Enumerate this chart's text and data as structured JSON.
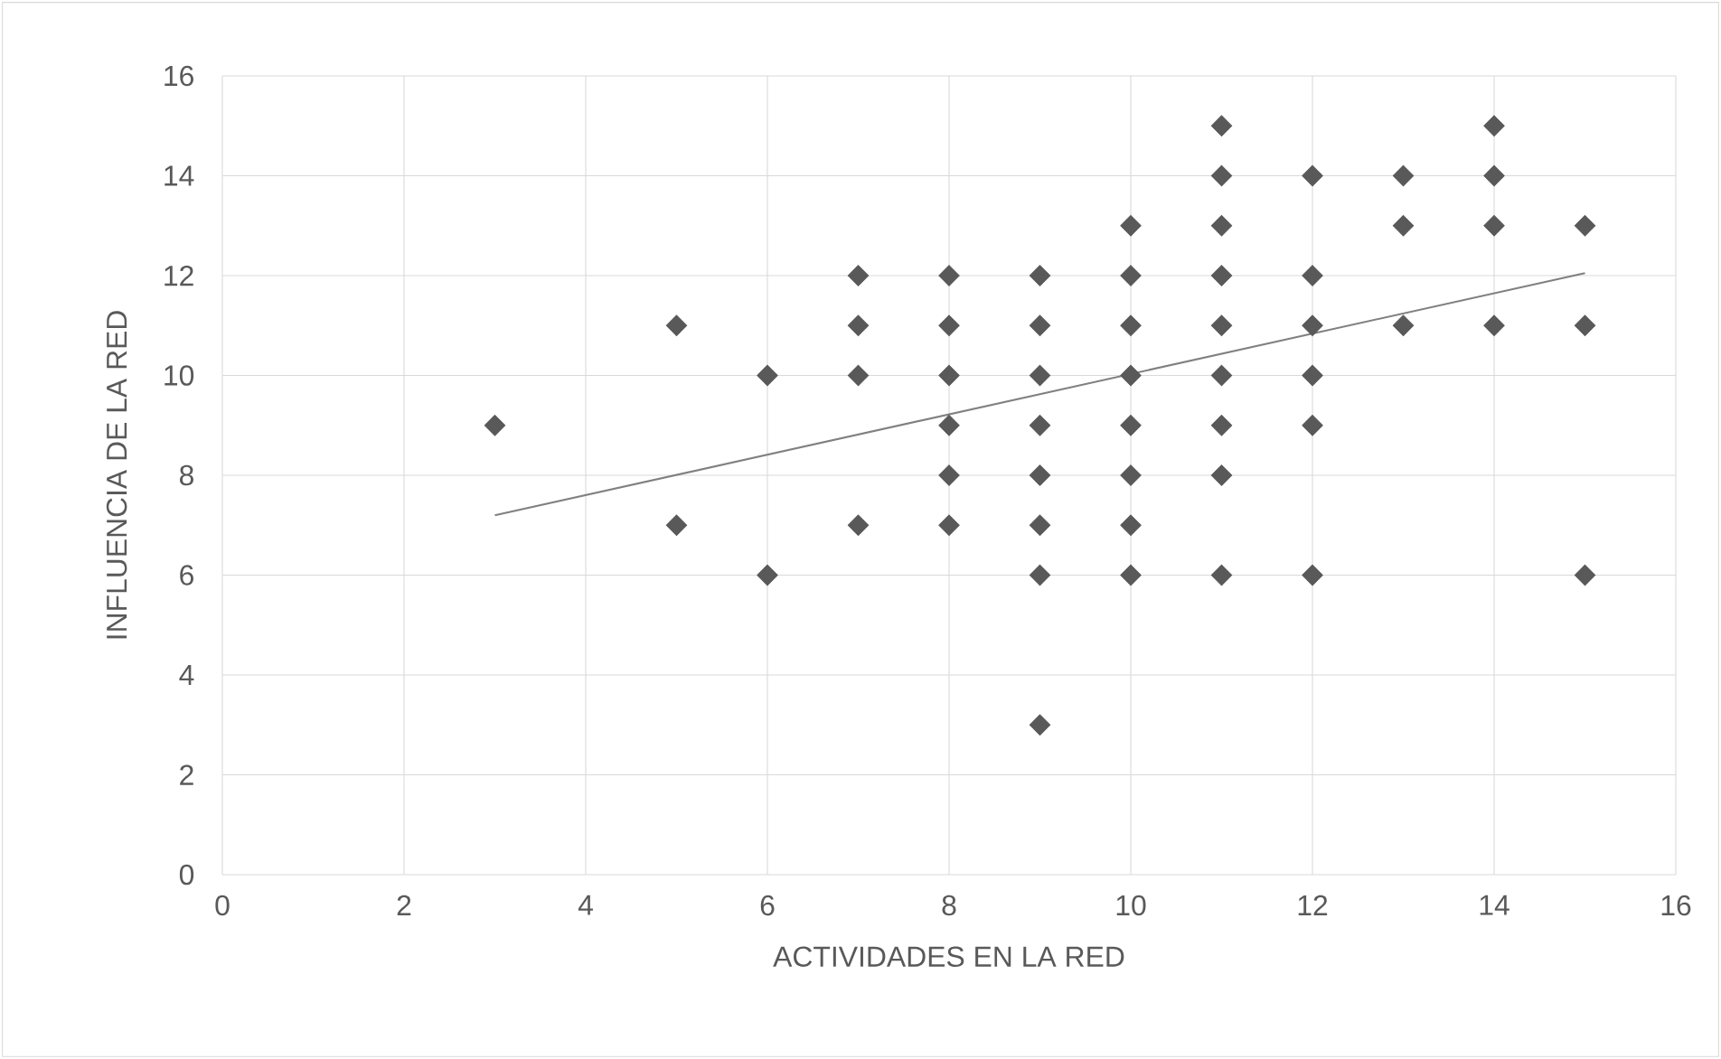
{
  "chart_data": {
    "type": "scatter",
    "xlabel": "ACTIVIDADES EN LA RED",
    "ylabel": "INFLUENCIA DE LA RED",
    "series": [
      {
        "color": "#595959",
        "marker": "diamond",
        "x": [
          3,
          5,
          5,
          6,
          6,
          7,
          7,
          7,
          7,
          8,
          8,
          8,
          8,
          8,
          8,
          9,
          9,
          9,
          9,
          9,
          9,
          9,
          9,
          10,
          10,
          10,
          10,
          10,
          10,
          10,
          10,
          11,
          11,
          11,
          11,
          11,
          11,
          11,
          11,
          11,
          12,
          12,
          12,
          12,
          12,
          12,
          13,
          13,
          13,
          14,
          14,
          14,
          14,
          15,
          15,
          15
        ],
        "values": [
          9,
          11,
          7,
          10,
          6,
          12,
          11,
          10,
          7,
          12,
          11,
          10,
          9,
          8,
          7,
          12,
          11,
          10,
          9,
          8,
          7,
          6,
          3,
          13,
          12,
          11,
          10,
          9,
          8,
          7,
          6,
          15,
          14,
          13,
          12,
          11,
          10,
          9,
          8,
          6,
          14,
          12,
          11,
          10,
          9,
          6,
          14,
          13,
          11,
          15,
          14,
          13,
          11,
          13,
          11,
          6
        ]
      },
      {
        "type": "line",
        "color": "#808080",
        "marker": "none",
        "x": [
          3,
          15
        ],
        "values": [
          7.2,
          12.05
        ]
      }
    ],
    "xlim": [
      0,
      16
    ],
    "ylim": [
      0,
      16
    ],
    "xticks": [
      0,
      2,
      4,
      6,
      8,
      10,
      12,
      14,
      16
    ],
    "yticks": [
      0,
      2,
      4,
      6,
      8,
      10,
      12,
      14,
      16
    ],
    "grid": true
  }
}
